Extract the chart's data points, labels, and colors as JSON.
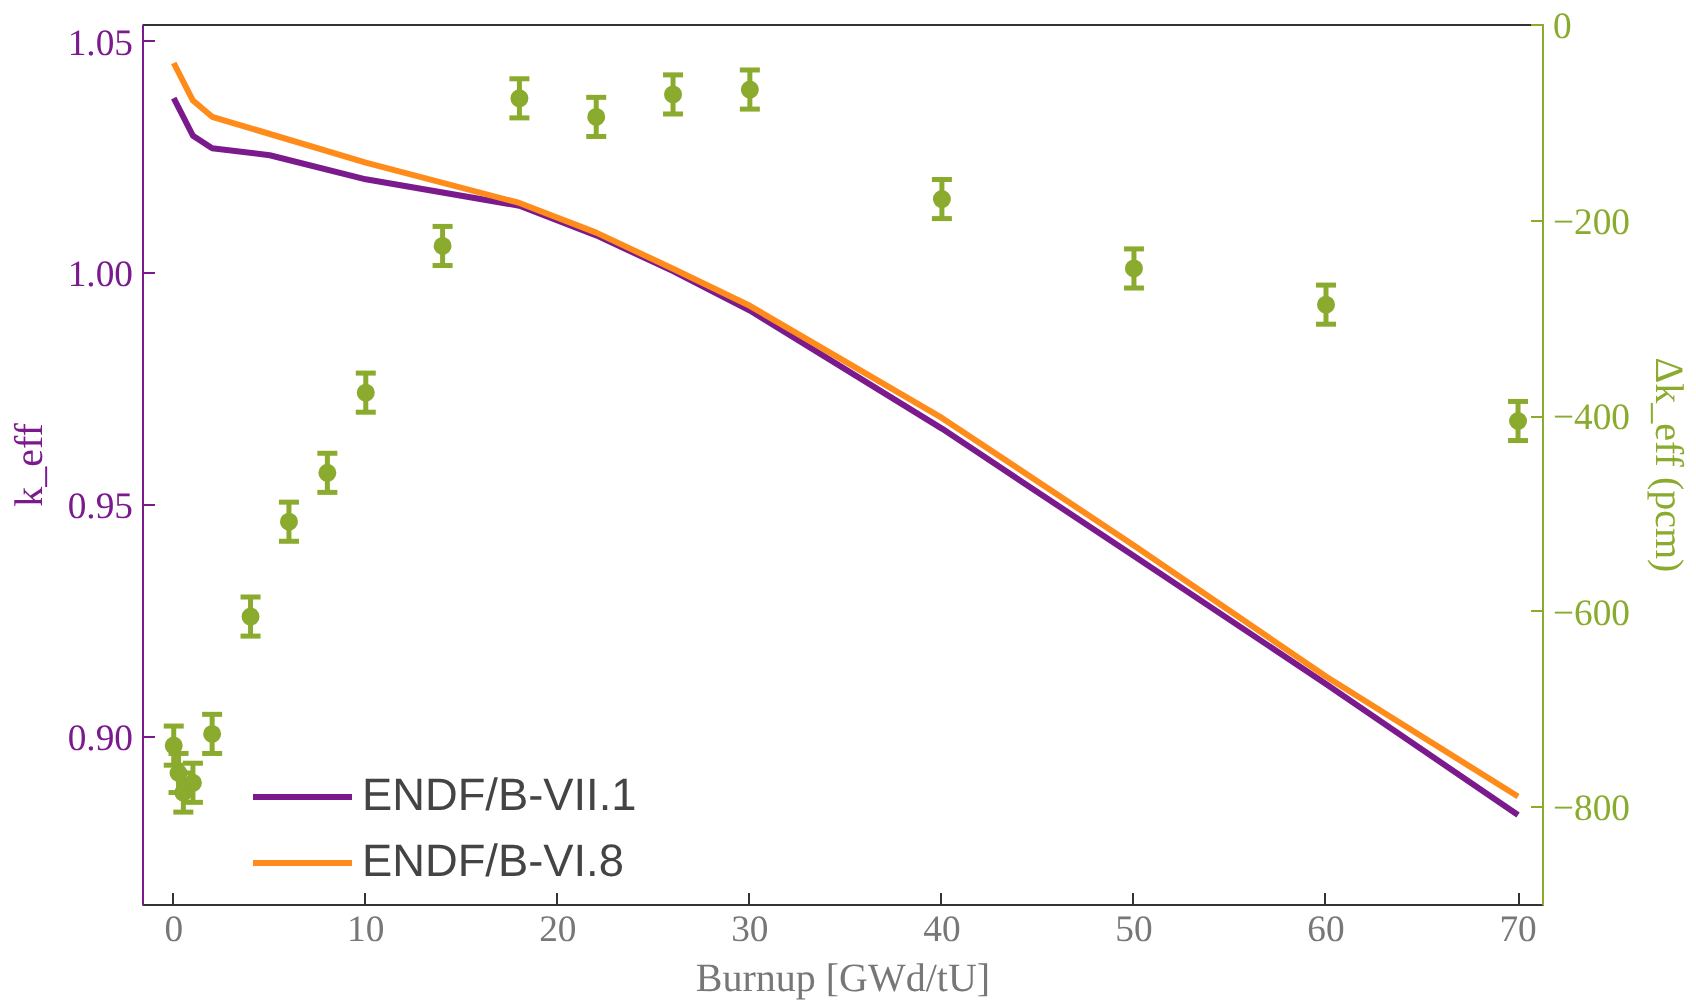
{
  "chart_data": {
    "type": "line",
    "xlabel": "Burnup [GWd/tU]",
    "ylabel": "k_eff",
    "y2label": "Δk_eff (pcm)",
    "xlim": [
      -1.6,
      71.3
    ],
    "xticks": [
      0,
      10,
      20,
      30,
      40,
      50,
      60,
      70
    ],
    "ylim": [
      0.8637,
      1.0536
    ],
    "yticks": [
      {
        "value": 0.9,
        "label": "0.90"
      },
      {
        "value": 0.95,
        "label": "0.95"
      },
      {
        "value": 1.0,
        "label": "1.00"
      },
      {
        "value": 1.05,
        "label": "1.05"
      }
    ],
    "y2lim": [
      -900,
      0
    ],
    "y2ticks": [
      {
        "value": -800,
        "label": "−800"
      },
      {
        "value": -600,
        "label": "−600"
      },
      {
        "value": -400,
        "label": "−400"
      },
      {
        "value": -200,
        "label": "−200"
      },
      0
    ],
    "grid": false,
    "legend": "bottom left",
    "series": [
      {
        "name": "ENDF/B-VII.1",
        "color": "#7b1a8c",
        "x": [
          0,
          1,
          2,
          5,
          10,
          18,
          22,
          26,
          30,
          40,
          50,
          60,
          70
        ],
        "values": [
          1.0378,
          1.0297,
          1.027,
          1.0255,
          1.0203,
          1.0146,
          1.0082,
          1.0005,
          0.992,
          0.9665,
          0.939,
          0.9114,
          0.8831
        ]
      },
      {
        "name": "ENDF/B-VI.8",
        "color": "#ff8c1a",
        "x": [
          0,
          1,
          2,
          10,
          18,
          22,
          26,
          30,
          40,
          50,
          60,
          70
        ],
        "values": [
          1.0454,
          1.0373,
          1.0338,
          1.0239,
          1.0152,
          1.0088,
          1.001,
          0.993,
          0.9688,
          0.9413,
          0.913,
          0.8871
        ]
      },
      {
        "type": "scatter",
        "axis": "y2",
        "color": "#8aab2e",
        "marker": "circle",
        "x": [
          0,
          0.25,
          0.5,
          1,
          2,
          4,
          6,
          8,
          10,
          14,
          18,
          22,
          26,
          30,
          40,
          50,
          60,
          70
        ],
        "values": [
          -737,
          -765,
          -785,
          -775,
          -725,
          -605,
          -508,
          -458,
          -376,
          -226,
          -75,
          -94,
          -71,
          -66,
          -178,
          -249,
          -286,
          -405
        ],
        "errors": [
          20,
          20,
          20,
          20,
          20,
          20,
          20,
          20,
          20,
          20,
          20,
          20,
          20,
          20,
          20,
          20,
          20,
          20
        ]
      }
    ]
  }
}
